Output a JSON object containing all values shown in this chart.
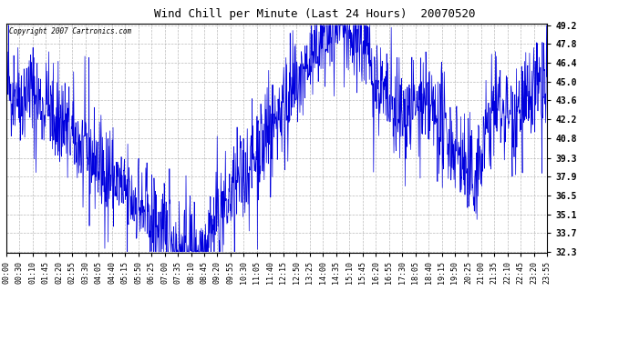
{
  "title": "Wind Chill per Minute (Last 24 Hours)  20070520",
  "copyright": "Copyright 2007 Cartronics.com",
  "line_color": "#0000dd",
  "bg_color": "#ffffff",
  "plot_bg_color": "#ffffff",
  "grid_color": "#aaaaaa",
  "y_ticks": [
    32.3,
    33.7,
    35.1,
    36.5,
    37.9,
    39.3,
    40.8,
    42.2,
    43.6,
    45.0,
    46.4,
    47.8,
    49.2
  ],
  "y_min": 32.3,
  "y_max": 49.2,
  "x_tick_labels": [
    "00:00",
    "00:30",
    "01:10",
    "01:45",
    "02:20",
    "02:55",
    "03:30",
    "04:05",
    "04:40",
    "05:15",
    "05:50",
    "06:25",
    "07:00",
    "07:35",
    "08:10",
    "08:45",
    "09:20",
    "09:55",
    "10:30",
    "11:05",
    "11:40",
    "12:15",
    "12:50",
    "13:25",
    "14:00",
    "14:35",
    "15:10",
    "15:45",
    "16:20",
    "16:55",
    "17:30",
    "18:05",
    "18:40",
    "19:15",
    "19:50",
    "20:25",
    "21:00",
    "21:35",
    "22:10",
    "22:45",
    "23:20",
    "23:55"
  ],
  "num_points": 1440
}
